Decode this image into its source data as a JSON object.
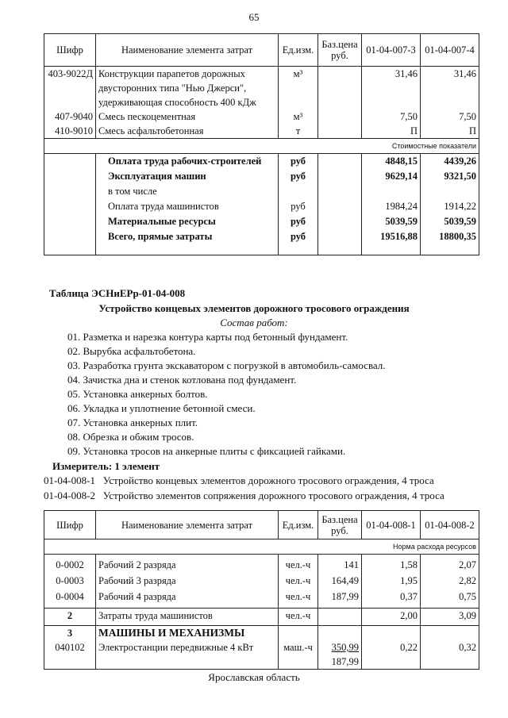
{
  "page_number": "65",
  "header": {
    "code": "Шифр",
    "name": "Наименование элемента затрат",
    "unit": "Ед.изм.",
    "price": "Баз.цена руб."
  },
  "table1": {
    "cols": [
      "01-04-007-3",
      "01-04-007-4"
    ],
    "rows": [
      {
        "code": "403-9022Д",
        "name": "Конструкции парапетов дорожных двусторонних типа \"Нью Джерси\", удерживающая способность 400 кДж",
        "unit": "м³",
        "v1": "31,46",
        "v2": "31,46"
      },
      {
        "code": "407-9040",
        "name": "Смесь пескоцементная",
        "unit": "м³",
        "v1": "7,50",
        "v2": "7,50"
      },
      {
        "code": "410-9010",
        "name": "Смесь асфальтобетонная",
        "unit": "т",
        "v1": "П",
        "v2": "П"
      }
    ],
    "section_label": "Стоимостные показатели",
    "cost_rows": [
      {
        "name": "Оплата труда рабочих-строителей",
        "unit": "руб",
        "v1": "4848,15",
        "v2": "4439,26",
        "bold": true
      },
      {
        "name": "Эксплуатация машин",
        "unit": "руб",
        "v1": "9629,14",
        "v2": "9321,50",
        "bold": true
      },
      {
        "name": "в том числе",
        "unit": "",
        "v1": "",
        "v2": "",
        "bold": false
      },
      {
        "name": "Оплата труда машинистов",
        "unit": "руб",
        "v1": "1984,24",
        "v2": "1914,22",
        "bold": false
      },
      {
        "name": "Материальные ресурсы",
        "unit": "руб",
        "v1": "5039,59",
        "v2": "5039,59",
        "bold": true
      },
      {
        "name": "Всего, прямые затраты",
        "unit": "руб",
        "v1": "19516,88",
        "v2": "18800,35",
        "bold": true
      }
    ]
  },
  "section": {
    "table_title": "Таблица  ЭСНиЕРр-01-04-008",
    "subtitle": "Устройство концевых элементов дорожного тросового ограждения",
    "works_heading": "Состав работ:",
    "works": [
      "01. Разметка и нарезка контура карты под бетонный фундамент.",
      "02. Вырубка асфальтобетона.",
      "03. Разработка грунта экскаватором с погрузкой в автомобиль-самосвал.",
      "04. Зачистка дна и стенок котлована под фундамент.",
      "05. Установка анкерных болтов.",
      "06. Укладка и уплотнение бетонной смеси.",
      "07. Установка анкерных плит.",
      "08. Обрезка и обжим тросов.",
      "09. Установка тросов на анкерные плиты с фиксацией  гайками."
    ],
    "measure": "Измеритель: 1 элемент",
    "items": [
      {
        "code": "01-04-008-1",
        "text": "Устройство концевых элементов дорожного тросового ограждения, 4 троса"
      },
      {
        "code": "01-04-008-2",
        "text": "Устройство элементов сопряжения дорожного тросового ограждения, 4 троса"
      }
    ]
  },
  "table2": {
    "cols": [
      "01-04-008-1",
      "01-04-008-2"
    ],
    "section_label": "Норма расхода ресурсов",
    "rows": [
      {
        "code": "0-0002",
        "name": "Рабочий 2 разряда",
        "unit": "чел.-ч",
        "price": "141",
        "v1": "1,58",
        "v2": "2,07"
      },
      {
        "code": "0-0003",
        "name": "Рабочий 3 разряда",
        "unit": "чел.-ч",
        "price": "164,49",
        "v1": "1,95",
        "v2": "2,82"
      },
      {
        "code": "0-0004",
        "name": "Рабочий 4 разряда",
        "unit": "чел.-ч",
        "price": "187,99",
        "v1": "0,37",
        "v2": "0,75"
      }
    ],
    "row2": {
      "code": "2",
      "name": "Затраты труда машинистов",
      "unit": "чел.-ч",
      "v1": "2,00",
      "v2": "3,09"
    },
    "row3": {
      "code": "3",
      "name": "МАШИНЫ И МЕХАНИЗМЫ"
    },
    "row4": {
      "code": "040102",
      "name": "Электростанции передвижные 4 кВт",
      "unit": "маш.-ч",
      "price": "350,99",
      "price2": "187,99",
      "v1": "0,22",
      "v2": "0,32"
    }
  },
  "footer": "Ярославская область"
}
